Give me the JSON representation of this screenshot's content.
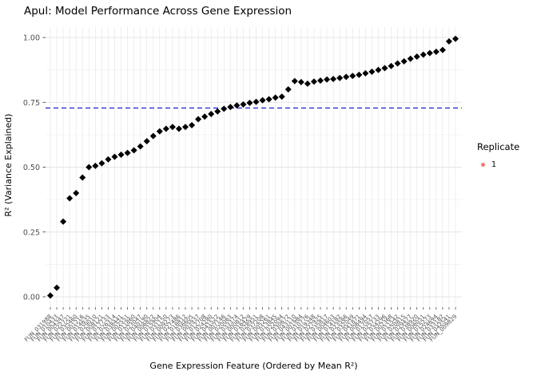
{
  "colors": {
    "background": "#ffffff",
    "point": "#000000",
    "hline": "#2222cc",
    "grid_major": "#e4e4e4",
    "grid_minor": "#f1f1f1",
    "axis_text": "#4d4d4d",
    "tick_mark": "#333333",
    "legend_point": "#f8766d"
  },
  "chart_data": {
    "type": "scatter",
    "title": "Apul: Model Performance Across Gene Expression",
    "xlabel": "Gene Expression Feature (Ordered by Mean R²)",
    "ylabel": "R² (Variance Explained)",
    "point_shape": "diamond",
    "grid": true,
    "ylim": [
      -0.04,
      1.04
    ],
    "yticks": [
      0,
      0.25,
      0.5,
      0.75,
      1.0
    ],
    "ytick_labels": [
      "0.00",
      "0.25",
      "0.50",
      "0.75",
      "1.00"
    ],
    "yticks_minor": [
      0.125,
      0.375,
      0.625,
      0.875
    ],
    "hline": {
      "value": 0.728,
      "style": "dashed"
    },
    "legend": {
      "title": "Replicate",
      "position": "right",
      "entries": [
        {
          "label": "1"
        }
      ]
    },
    "categories": [
      "FUN_031988",
      "FUN_010433",
      "FUN_004347",
      "FUN_022721",
      "FUN_035460",
      "FUN_001216",
      "FUN_014635",
      "FUN_029010",
      "FUN_008121",
      "FUN_017733",
      "FUN_026314",
      "FUN_038441",
      "FUN_002551",
      "FUN_011860",
      "FUN_023047",
      "FUN_040190",
      "FUN_006822",
      "FUN_015904",
      "FUN_031150",
      "FUN_009273",
      "FUN_027486",
      "FUN_018812",
      "FUN_036605",
      "FUN_003937",
      "FUN_012708",
      "FUN_024280",
      "FUN_041522",
      "FUN_007146",
      "FUN_020063",
      "FUN_033374",
      "FUN_000812",
      "FUN_016429",
      "FUN_028951",
      "FUN_037208",
      "FUN_005261",
      "FUN_013845",
      "FUN_022094",
      "FUN_030672",
      "FUN_043110",
      "FUN_001984",
      "FUN_010776",
      "FUN_019348",
      "FUN_027925",
      "FUN_035817",
      "FUN_004603",
      "FUN_014182",
      "FUN_023566",
      "FUN_032049",
      "FUN_041871",
      "FUN_008494",
      "FUN_017057",
      "FUN_025733",
      "FUN_034296",
      "FUN_002368",
      "FUN_011542",
      "FUN_020815",
      "FUN_029477",
      "FUN_038920",
      "FUN_006051",
      "FUN_015273",
      "FUN_024694",
      "FUN_033182",
      "FUN_042541",
      "FUN_009829"
    ],
    "values": [
      0.005,
      0.035,
      0.29,
      0.38,
      0.4,
      0.46,
      0.5,
      0.505,
      0.515,
      0.53,
      0.54,
      0.548,
      0.555,
      0.565,
      0.58,
      0.6,
      0.62,
      0.638,
      0.648,
      0.655,
      0.648,
      0.655,
      0.662,
      0.685,
      0.695,
      0.705,
      0.715,
      0.725,
      0.732,
      0.738,
      0.742,
      0.748,
      0.752,
      0.758,
      0.762,
      0.768,
      0.772,
      0.8,
      0.832,
      0.828,
      0.822,
      0.83,
      0.834,
      0.838,
      0.84,
      0.844,
      0.848,
      0.852,
      0.856,
      0.862,
      0.868,
      0.875,
      0.882,
      0.89,
      0.9,
      0.908,
      0.918,
      0.926,
      0.934,
      0.94,
      0.945,
      0.952,
      0.985,
      0.995
    ]
  }
}
